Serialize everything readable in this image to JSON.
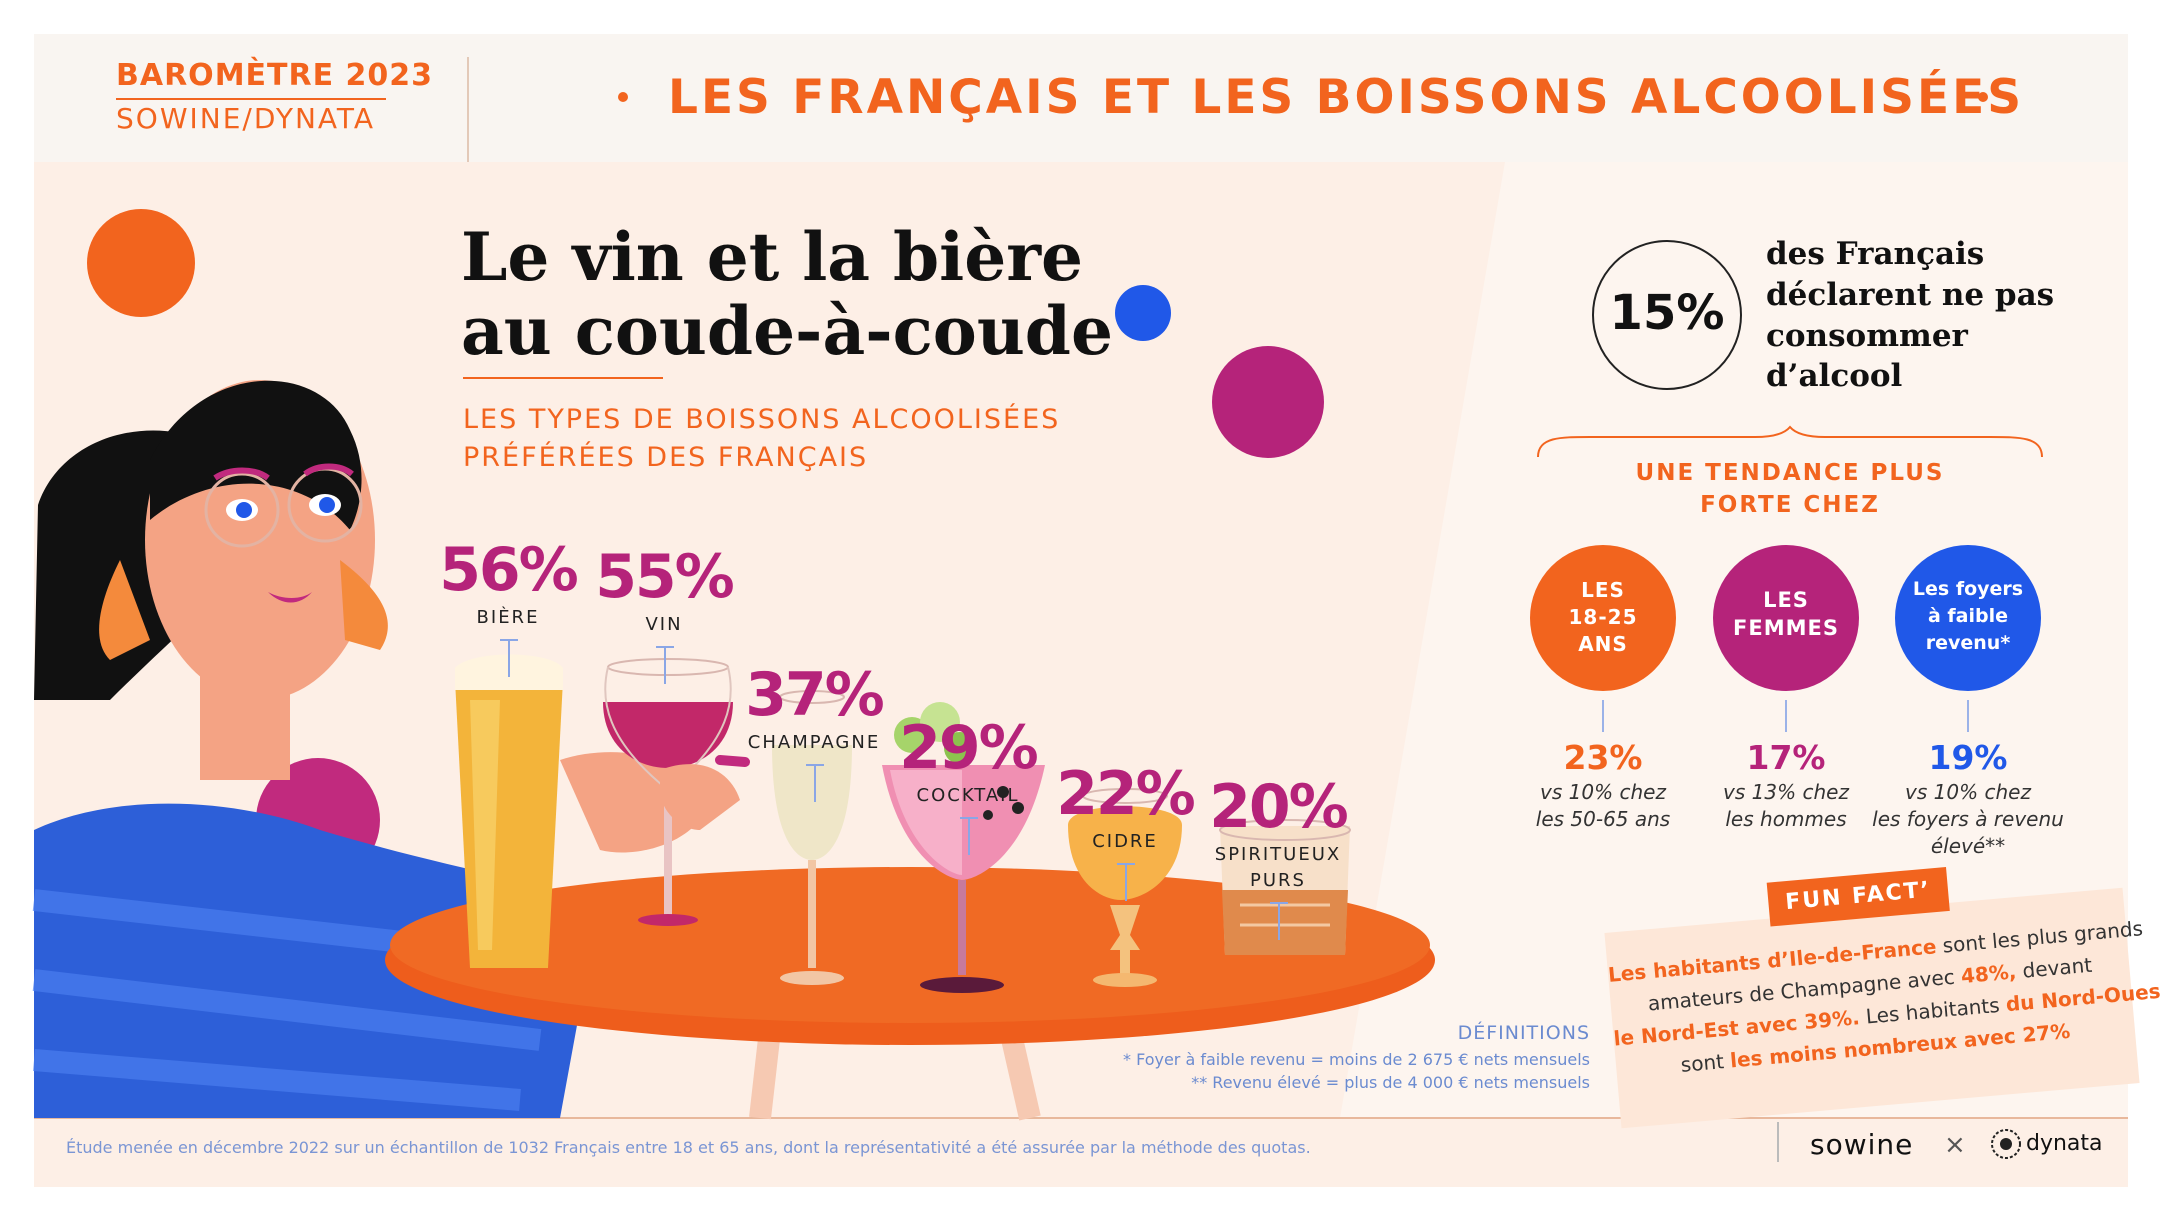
{
  "header": {
    "barometer": "BAROMÈTRE 2023",
    "source": "SOWINE/DYNATA",
    "title": "LES FRANÇAIS ET LES BOISSONS ALCOOLISÉES"
  },
  "main": {
    "headline_line1": "Le vin et la bière",
    "headline_line2": "au coude-à-coude",
    "subtitle_line1": "LES TYPES DE BOISSONS ALCOOLISÉES",
    "subtitle_line2": "PRÉFÉRÉES DES FRANÇAIS"
  },
  "chart_data": {
    "type": "bar",
    "title": "LES TYPES DE BOISSONS ALCOOLISÉES PRÉFÉRÉES DES FRANÇAIS",
    "categories": [
      "BIÈRE",
      "VIN",
      "CHAMPAGNE",
      "COCKTAIL",
      "CIDRE",
      "SPIRITUEUX PURS"
    ],
    "values": [
      56,
      55,
      37,
      29,
      22,
      20
    ],
    "value_labels": [
      "56%",
      "55%",
      "37%",
      "29%",
      "22%",
      "20%"
    ],
    "unit": "%"
  },
  "side": {
    "stat_value": "15%",
    "stat_text": [
      "des Français",
      "déclarent ne pas",
      "consommer",
      "d’alcool"
    ],
    "trend_title_line1": "UNE TENDANCE PLUS",
    "trend_title_line2": "FORTE CHEZ",
    "groups": [
      {
        "label": [
          "LES",
          "18-25",
          "ANS"
        ],
        "value": "23%",
        "compare": [
          "vs 10% chez",
          "les 50-65 ans"
        ],
        "color": "#f2641e"
      },
      {
        "label": [
          "LES",
          "FEMMES"
        ],
        "value": "17%",
        "compare": [
          "vs 13% chez",
          "les hommes"
        ],
        "color": "#b5237a"
      },
      {
        "label": [
          "Les foyers",
          "à faible",
          "revenu*"
        ],
        "value": "19%",
        "compare": [
          "vs 10% chez",
          "les foyers à revenu",
          "élevé**"
        ],
        "color": "#2058e8"
      }
    ]
  },
  "fun_fact": {
    "label": "FUN FACT’",
    "line1_a": "Les habitants d’Ile-de-France",
    "line1_b": " sont les plus grands",
    "line2_a": "amateurs de Champagne avec ",
    "line2_b": "48%,",
    "line2_c": " devant",
    "line3_a": "le Nord-Est avec 39%.",
    "line3_b": " Les habitants ",
    "line3_c": "du Nord-Ouest",
    "line4_a": "sont ",
    "line4_b": "les moins nombreux avec 27%"
  },
  "definitions": {
    "title": "DÉFINITIONS",
    "line1": "* Foyer à faible revenu = moins de 2 675 € nets mensuels",
    "line2": "** Revenu élevé = plus de 4 000 € nets mensuels"
  },
  "footer": {
    "note": "Étude menée en décembre 2022 sur un échantillon de 1032 Français entre 18 et 65 ans, dont la représentativité a été assurée par la méthode des quotas.",
    "logo_sowine": "sowine",
    "separator": "×",
    "logo_dynata": "dynata"
  },
  "colors": {
    "orange": "#f2641e",
    "magenta": "#b5237a",
    "blue": "#2058e8",
    "cream": "#fdf1ea"
  }
}
